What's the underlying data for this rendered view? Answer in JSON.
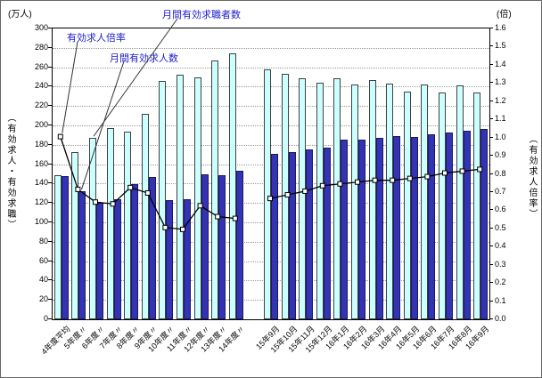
{
  "chart": {
    "left_axis_unit": "(万人)",
    "right_axis_unit": "(倍)",
    "left_axis_title": "（有効求人・有効求職）",
    "right_axis_title": "（有効求人倍率）",
    "annotations": {
      "ratio_label": "有効求人倍率",
      "openings_label": "月間有効求人数",
      "seekers_label": "月間有効求職者数"
    },
    "colors": {
      "seekers_bar": "#ccffff",
      "seekers_bar_border": "#404040",
      "openings_bar": "#3333b3",
      "openings_bar_border": "#1a1a66",
      "line": "#000000",
      "marker_fill": "#ffffff",
      "annotation_text": "#2020cc",
      "leader_line": "#333333"
    }
  },
  "chart_data": {
    "type": "bar",
    "title": "",
    "categories": [
      "4年度平均",
      "5年度〃",
      "6年度〃",
      "7年度〃",
      "8年度〃",
      "9年度〃",
      "10年度〃",
      "11年度〃",
      "12年度〃",
      "13年度〃",
      "14年度〃",
      "15年9月",
      "15年10月",
      "15年11月",
      "15年12月",
      "16年1月",
      "16年2月",
      "16年3月",
      "16年4月",
      "16年5月",
      "16年6月",
      "16年7月",
      "16年8月",
      "16年9月"
    ],
    "gap_after_index": 10,
    "left_axis": {
      "min": 0,
      "max": 300,
      "step": 20,
      "unit": "万人",
      "label": "有効求人・有効求職"
    },
    "right_axis": {
      "min": 0,
      "max": 1.6,
      "step": 0.1,
      "unit": "倍",
      "label": "有効求人倍率"
    },
    "grid": true,
    "legend_position": "none",
    "series": [
      {
        "name": "月間有効求職者数",
        "type": "bar",
        "axis": "left",
        "values": [
          148,
          172,
          186,
          196,
          193,
          211,
          245,
          251,
          249,
          266,
          273,
          257,
          252,
          248,
          243,
          248,
          241,
          246,
          242,
          234,
          241,
          233,
          240,
          233
        ]
      },
      {
        "name": "月間有効求人数",
        "type": "bar",
        "axis": "left",
        "values": [
          147,
          131,
          119,
          123,
          139,
          146,
          122,
          123,
          149,
          148,
          152,
          170,
          172,
          174,
          176,
          184,
          184,
          186,
          188,
          187,
          190,
          192,
          194,
          195
        ]
      },
      {
        "name": "有効求人倍率",
        "type": "line",
        "axis": "right",
        "values": [
          1.0,
          0.71,
          0.64,
          0.63,
          0.72,
          0.69,
          0.5,
          0.49,
          0.62,
          0.56,
          0.55,
          0.66,
          0.68,
          0.7,
          0.73,
          0.74,
          0.75,
          0.76,
          0.76,
          0.77,
          0.78,
          0.8,
          0.81,
          0.82
        ]
      }
    ]
  }
}
